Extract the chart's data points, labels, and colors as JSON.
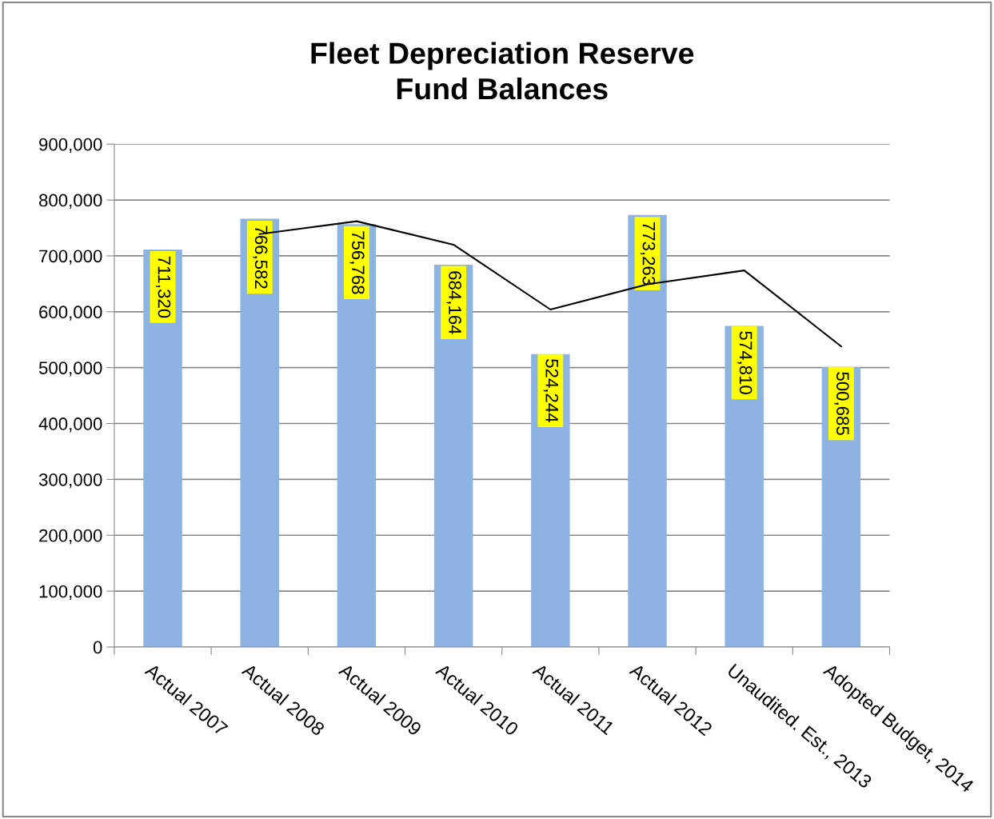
{
  "chart_data": {
    "type": "bar",
    "title": "Fleet Depreciation Reserve\nFund Balances",
    "categories": [
      "Actual 2007",
      "Actual 2008",
      "Actual 2009",
      "Actual 2010",
      "Actual 2011",
      "Actual 2012",
      "Unaudited. Est., 2013",
      "Adopted Budget, 2014"
    ],
    "series": [
      {
        "color": "#8db3e2",
        "values": [
          711320,
          766582,
          756768,
          684164,
          524244,
          773263,
          574810,
          500685
        ],
        "value_labels": [
          "711,320",
          "766,582",
          "756,768",
          "684,164",
          "524,244",
          "773,263",
          "574,810",
          "500,685"
        ]
      },
      {
        "type": "line",
        "color": "#000000",
        "values": [
          null,
          739000,
          762000,
          720000,
          604000,
          649000,
          674000,
          538000
        ]
      }
    ],
    "ylim": [
      0,
      900000
    ],
    "yticks": [
      {
        "value": 0,
        "label": "0"
      },
      {
        "value": 100000,
        "label": "100,000"
      },
      {
        "value": 200000,
        "label": "200,000"
      },
      {
        "value": 300000,
        "label": "300,000"
      },
      {
        "value": 400000,
        "label": "400,000"
      },
      {
        "value": 500000,
        "label": "500,000"
      },
      {
        "value": 600000,
        "label": "600,000"
      },
      {
        "value": 700000,
        "label": "700,000"
      },
      {
        "value": 800000,
        "label": "800,000"
      },
      {
        "value": 900000,
        "label": "900,000"
      }
    ],
    "grid": "y",
    "marker": "none",
    "line_style": "solid"
  }
}
